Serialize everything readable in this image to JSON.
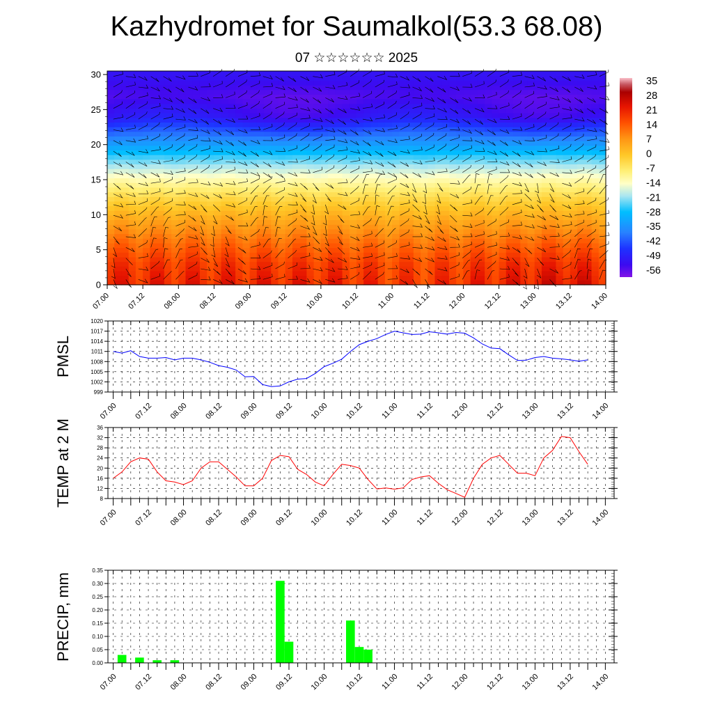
{
  "header": {
    "title": "Kazhydromet for Saumalkol(53.3 68.08)",
    "subtitle": "07 ☆☆☆☆☆☆ 2025"
  },
  "chart_data": [
    {
      "type": "heatmap",
      "title": "",
      "xlabel": "",
      "ylabel": "",
      "x_tick_labels": [
        "07.00",
        "07.12",
        "08.00",
        "08.12",
        "09.00",
        "09.12",
        "10.00",
        "10.12",
        "11.00",
        "11.12",
        "12.00",
        "12.12",
        "13.00",
        "13.12",
        "14.00"
      ],
      "y_tick_labels": [
        "0",
        "5",
        "10",
        "15",
        "20",
        "25",
        "30"
      ],
      "ylim": [
        0,
        30.5
      ],
      "xlim": [
        0,
        14
      ],
      "colorbar": {
        "labels": [
          "35",
          "28",
          "21",
          "14",
          "7",
          "0",
          "-7",
          "-14",
          "-21",
          "-28",
          "-35",
          "-42",
          "-49",
          "-56"
        ],
        "range": [
          -60,
          38
        ]
      },
      "level_temperature_profile": {
        "levels": [
          0,
          3,
          6,
          9,
          12,
          15,
          18,
          21,
          24,
          27,
          30
        ],
        "base_temperature": [
          22,
          19,
          13,
          6,
          -2,
          -12,
          -24,
          -38,
          -52,
          -56,
          -52
        ]
      },
      "notes": "temperature shading with wind barbs"
    },
    {
      "type": "line",
      "ylabel": "PMSL",
      "ylim": [
        999,
        1020
      ],
      "y_tick_labels": [
        "1020",
        "1017",
        "1014",
        "1011",
        "1008",
        "1005",
        "1002",
        "999"
      ],
      "x_tick_labels": [
        "07.00",
        "07.12",
        "08.00",
        "08.12",
        "09.00",
        "09.12",
        "10.00",
        "10.12",
        "11.00",
        "11.12",
        "12.00",
        "12.12",
        "13.00",
        "13.12",
        "14.00"
      ],
      "color": "#0000ff",
      "x": [
        0,
        0.25,
        0.5,
        0.75,
        1,
        1.25,
        1.5,
        1.75,
        2,
        2.25,
        2.5,
        2.75,
        3,
        3.25,
        3.5,
        3.75,
        4,
        4.25,
        4.5,
        4.75,
        5,
        5.25,
        5.5,
        5.75,
        6,
        6.25,
        6.5,
        6.75,
        7,
        7.25,
        7.5,
        7.75,
        8,
        8.25,
        8.5,
        8.75,
        9,
        9.25,
        9.5,
        9.75,
        10,
        10.25,
        10.5,
        10.75,
        11,
        11.25,
        11.5,
        11.75,
        12,
        12.25,
        12.5,
        12.75,
        13,
        13.25,
        13.5
      ],
      "values": [
        1011,
        1010.5,
        1011.2,
        1009.5,
        1009,
        1009,
        1009.2,
        1008.5,
        1009,
        1009,
        1008.5,
        1007.8,
        1006.8,
        1006.3,
        1005.5,
        1003.5,
        1003.6,
        1001.2,
        1000.6,
        1000.8,
        1002,
        1002.8,
        1003,
        1004.5,
        1006.5,
        1007.5,
        1008.7,
        1011,
        1013,
        1014,
        1014.8,
        1016,
        1017,
        1016.5,
        1016,
        1016.1,
        1016.8,
        1016.5,
        1016.1,
        1016.6,
        1016.4,
        1015,
        1013.2,
        1012,
        1011.8,
        1010,
        1008.3,
        1008.4,
        1009.2,
        1009.5,
        1009,
        1008.8,
        1008.5,
        1008.1,
        1008.5
      ]
    },
    {
      "type": "line",
      "ylabel": "TEMP at 2 M",
      "ylim": [
        8,
        36
      ],
      "y_tick_labels": [
        "36",
        "32",
        "28",
        "24",
        "20",
        "16",
        "12",
        "8"
      ],
      "x_tick_labels": [
        "07.00",
        "07.12",
        "08.00",
        "08.12",
        "09.00",
        "09.12",
        "10.00",
        "10.12",
        "11.00",
        "11.12",
        "12.00",
        "12.12",
        "13.00",
        "13.12",
        "14.00"
      ],
      "color": "#ff0000",
      "x": [
        0,
        0.25,
        0.5,
        0.75,
        1,
        1.25,
        1.5,
        1.75,
        2,
        2.25,
        2.5,
        2.75,
        3,
        3.25,
        3.5,
        3.75,
        4,
        4.25,
        4.5,
        4.75,
        5,
        5.25,
        5.5,
        5.75,
        6,
        6.25,
        6.5,
        6.75,
        7,
        7.25,
        7.5,
        7.75,
        8,
        8.25,
        8.5,
        8.75,
        9,
        9.25,
        9.5,
        9.75,
        10,
        10.25,
        10.5,
        10.75,
        11,
        11.25,
        11.5,
        11.75,
        12,
        12.25,
        12.5,
        12.75,
        13,
        13.25,
        13.5
      ],
      "values": [
        16,
        18.5,
        22.5,
        24,
        23.5,
        18.5,
        15,
        14.5,
        13.5,
        15,
        20,
        22.5,
        22.5,
        19.5,
        16.5,
        13,
        13,
        16,
        23,
        25,
        24.5,
        19.5,
        17.5,
        14.5,
        13,
        17.5,
        21.5,
        21,
        20,
        15.5,
        11.8,
        12.2,
        11.7,
        12.2,
        15.5,
        16.5,
        17,
        14,
        11.5,
        10,
        8.5,
        16,
        21.5,
        24,
        25,
        21.5,
        18,
        18,
        17,
        24,
        27,
        32.5,
        32,
        26.5,
        21.5
      ]
    },
    {
      "type": "bar",
      "ylabel": "PRECIP, mm",
      "ylim": [
        0,
        0.35
      ],
      "y_tick_labels": [
        "0.35",
        "0.30",
        "0.25",
        "0.20",
        "0.15",
        "0.10",
        "0.05",
        "0.00"
      ],
      "x_tick_labels": [
        "07.00",
        "07.12",
        "08.00",
        "08.12",
        "09.00",
        "09.12",
        "10.00",
        "10.12",
        "11.00",
        "11.12",
        "12.00",
        "12.12",
        "13.00",
        "13.12",
        "14.00"
      ],
      "color": "#00ff00",
      "x": [
        0.25,
        0.75,
        1.25,
        1.75,
        4.75,
        5.0,
        6.75,
        7.0,
        7.25
      ],
      "values": [
        0.03,
        0.02,
        0.01,
        0.01,
        0.31,
        0.08,
        0.16,
        0.06,
        0.05
      ]
    }
  ]
}
